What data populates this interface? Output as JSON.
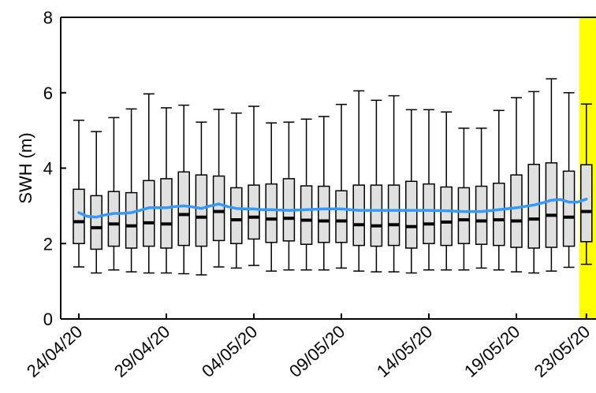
{
  "chart_data": {
    "type": "boxplot",
    "ylabel": "SWH (m)",
    "ylim": [
      0,
      8
    ],
    "yticks": [
      0,
      2,
      4,
      6,
      8
    ],
    "x_tick_labels": [
      {
        "index": 0,
        "label": "24/04/20"
      },
      {
        "index": 5,
        "label": "29/04/20"
      },
      {
        "index": 10,
        "label": "04/05/20"
      },
      {
        "index": 15,
        "label": "09/05/20"
      },
      {
        "index": 20,
        "label": "14/05/20"
      },
      {
        "index": 25,
        "label": "19/05/20"
      },
      {
        "index": 29,
        "label": "23/05/20"
      }
    ],
    "highlight": {
      "from_index": 28.6,
      "color": "#ffff00"
    },
    "box_fill": "#e0e0e0",
    "median_color": "#000000",
    "mean_line_color": "#3399ff",
    "boxes": [
      {
        "wlo": 1.38,
        "q1": 2.0,
        "median": 2.58,
        "q3": 3.44,
        "whi": 5.27
      },
      {
        "wlo": 1.22,
        "q1": 1.85,
        "median": 2.42,
        "q3": 3.27,
        "whi": 4.97
      },
      {
        "wlo": 1.3,
        "q1": 1.93,
        "median": 2.52,
        "q3": 3.38,
        "whi": 5.34
      },
      {
        "wlo": 1.25,
        "q1": 1.88,
        "median": 2.47,
        "q3": 3.35,
        "whi": 5.57
      },
      {
        "wlo": 1.22,
        "q1": 1.93,
        "median": 2.55,
        "q3": 3.67,
        "whi": 5.97
      },
      {
        "wlo": 1.22,
        "q1": 1.88,
        "median": 2.52,
        "q3": 3.72,
        "whi": 5.6
      },
      {
        "wlo": 1.2,
        "q1": 1.95,
        "median": 2.77,
        "q3": 3.9,
        "whi": 5.67
      },
      {
        "wlo": 1.17,
        "q1": 1.93,
        "median": 2.7,
        "q3": 3.82,
        "whi": 5.22
      },
      {
        "wlo": 1.38,
        "q1": 2.08,
        "median": 2.85,
        "q3": 3.79,
        "whi": 5.56
      },
      {
        "wlo": 1.35,
        "q1": 2.0,
        "median": 2.63,
        "q3": 3.48,
        "whi": 5.46
      },
      {
        "wlo": 1.42,
        "q1": 2.12,
        "median": 2.7,
        "q3": 3.55,
        "whi": 5.64
      },
      {
        "wlo": 1.27,
        "q1": 2.03,
        "median": 2.65,
        "q3": 3.58,
        "whi": 5.2
      },
      {
        "wlo": 1.3,
        "q1": 2.07,
        "median": 2.67,
        "q3": 3.72,
        "whi": 5.22
      },
      {
        "wlo": 1.3,
        "q1": 1.98,
        "median": 2.62,
        "q3": 3.53,
        "whi": 5.3
      },
      {
        "wlo": 1.3,
        "q1": 2.03,
        "median": 2.6,
        "q3": 3.52,
        "whi": 5.37
      },
      {
        "wlo": 1.35,
        "q1": 2.03,
        "median": 2.6,
        "q3": 3.4,
        "whi": 5.69
      },
      {
        "wlo": 1.27,
        "q1": 1.95,
        "median": 2.5,
        "q3": 3.55,
        "whi": 6.05
      },
      {
        "wlo": 1.25,
        "q1": 1.93,
        "median": 2.47,
        "q3": 3.55,
        "whi": 5.8
      },
      {
        "wlo": 1.25,
        "q1": 1.95,
        "median": 2.5,
        "q3": 3.55,
        "whi": 5.92
      },
      {
        "wlo": 1.22,
        "q1": 1.88,
        "median": 2.45,
        "q3": 3.65,
        "whi": 5.55
      },
      {
        "wlo": 1.3,
        "q1": 2.0,
        "median": 2.52,
        "q3": 3.58,
        "whi": 5.55
      },
      {
        "wlo": 1.3,
        "q1": 1.95,
        "median": 2.57,
        "q3": 3.5,
        "whi": 5.49
      },
      {
        "wlo": 1.3,
        "q1": 2.0,
        "median": 2.63,
        "q3": 3.48,
        "whi": 5.06
      },
      {
        "wlo": 1.35,
        "q1": 1.98,
        "median": 2.6,
        "q3": 3.52,
        "whi": 5.06
      },
      {
        "wlo": 1.3,
        "q1": 1.95,
        "median": 2.63,
        "q3": 3.6,
        "whi": 5.53
      },
      {
        "wlo": 1.25,
        "q1": 1.9,
        "median": 2.6,
        "q3": 3.82,
        "whi": 5.87
      },
      {
        "wlo": 1.22,
        "q1": 1.88,
        "median": 2.65,
        "q3": 4.1,
        "whi": 6.03
      },
      {
        "wlo": 1.27,
        "q1": 1.9,
        "median": 2.75,
        "q3": 4.14,
        "whi": 6.37
      },
      {
        "wlo": 1.37,
        "q1": 1.93,
        "median": 2.7,
        "q3": 3.92,
        "whi": 6.0
      },
      {
        "wlo": 1.45,
        "q1": 2.05,
        "median": 2.85,
        "q3": 4.09,
        "whi": 5.7
      }
    ],
    "mean_line": [
      [
        0,
        2.82
      ],
      [
        0.5,
        2.72
      ],
      [
        1,
        2.7
      ],
      [
        1.5,
        2.76
      ],
      [
        2,
        2.8
      ],
      [
        2.5,
        2.8
      ],
      [
        3,
        2.82
      ],
      [
        3.5,
        2.88
      ],
      [
        4,
        2.95
      ],
      [
        4.5,
        2.95
      ],
      [
        5,
        2.95
      ],
      [
        5.5,
        2.98
      ],
      [
        6,
        3.0
      ],
      [
        6.5,
        2.97
      ],
      [
        7,
        2.93
      ],
      [
        7.5,
        3.0
      ],
      [
        8,
        3.05
      ],
      [
        8.5,
        2.98
      ],
      [
        9,
        2.93
      ],
      [
        9.5,
        2.92
      ],
      [
        10,
        2.92
      ],
      [
        10.5,
        2.9
      ],
      [
        11,
        2.9
      ],
      [
        12,
        2.88
      ],
      [
        13,
        2.9
      ],
      [
        14,
        2.92
      ],
      [
        15,
        2.92
      ],
      [
        16,
        2.88
      ],
      [
        17,
        2.88
      ],
      [
        18,
        2.88
      ],
      [
        19,
        2.88
      ],
      [
        20,
        2.88
      ],
      [
        21,
        2.87
      ],
      [
        22,
        2.85
      ],
      [
        23,
        2.85
      ],
      [
        24,
        2.9
      ],
      [
        25,
        2.95
      ],
      [
        26,
        3.02
      ],
      [
        26.5,
        3.08
      ],
      [
        27,
        3.15
      ],
      [
        27.5,
        3.17
      ],
      [
        28,
        3.1
      ],
      [
        28.5,
        3.1
      ],
      [
        29,
        3.18
      ]
    ]
  }
}
